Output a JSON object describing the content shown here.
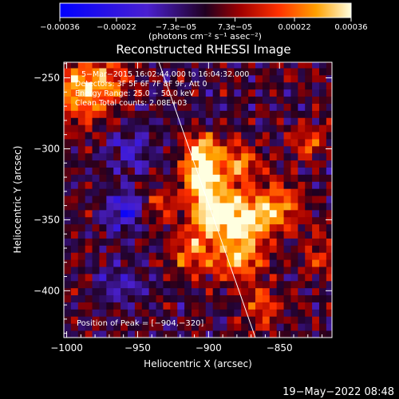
{
  "chart_data": {
    "type": "heatmap",
    "title": "Reconstructed RHESSI Image",
    "xlabel": "Heliocentric X (arcsec)",
    "ylabel": "Heliocentric Y (arcsec)",
    "xlim": [
      -1002,
      -813
    ],
    "ylim": [
      -433,
      -239
    ],
    "x_ticks": [
      -1000,
      -950,
      -900,
      -850
    ],
    "y_ticks": [
      -400,
      -350,
      -300,
      -250
    ],
    "x_tick_labels": [
      "−1000",
      "−950",
      "−900",
      "−850"
    ],
    "y_tick_labels": [
      "−400",
      "−350",
      "−300",
      "−250"
    ],
    "colorbar": {
      "range": [
        -0.00036,
        0.00036
      ],
      "ticks": [
        -0.00036,
        -0.00022,
        -7.3e-05,
        7.3e-05,
        0.00022,
        0.00036
      ],
      "tick_labels": [
        "−0.00036",
        "−0.00022",
        "−7.3e−05",
        "7.3e−05",
        "0.00022",
        "0.00036"
      ],
      "unit_label": "(photons cm⁻² s⁻¹ asec⁻²)"
    },
    "annotations": [
      "5−Mar−2015 16:02:44.000 to 16:04:32.000",
      "Detectors: 3F 5F 6F 7F 8F 9F, Att 0",
      "Energy Range: 25.0 − 50.0 keV",
      "Clean     Total counts: 2.08E+03"
    ],
    "peak_label": "Position of Peak = [−904,−320]",
    "peak": [
      -904,
      -320
    ],
    "limb_line": [
      [
        -935,
        -239
      ],
      [
        -867,
        -433
      ]
    ],
    "sources": [
      {
        "x": -993,
        "y": -262,
        "value": 0.00022,
        "width": 16
      },
      {
        "x": -975,
        "y": -252,
        "value": 0.00018,
        "width": 13
      },
      {
        "x": -905,
        "y": -319,
        "value": 0.00036,
        "width": 10
      },
      {
        "x": -898,
        "y": -344,
        "value": 0.00036,
        "width": 11
      },
      {
        "x": -876,
        "y": -350,
        "value": 0.00032,
        "width": 14
      },
      {
        "x": -905,
        "y": -300,
        "value": 0.00026,
        "width": 9
      },
      {
        "x": -880,
        "y": -310,
        "value": 0.00024,
        "width": 10
      },
      {
        "x": -912,
        "y": -373,
        "value": 0.00024,
        "width": 11
      },
      {
        "x": -878,
        "y": -378,
        "value": 0.00022,
        "width": 12
      },
      {
        "x": -850,
        "y": -340,
        "value": 0.00022,
        "width": 12
      },
      {
        "x": -830,
        "y": -295,
        "value": 0.00018,
        "width": 9
      },
      {
        "x": -935,
        "y": -340,
        "value": 0.00016,
        "width": 9
      },
      {
        "x": -862,
        "y": -410,
        "value": 0.00016,
        "width": 10
      },
      {
        "x": -822,
        "y": -375,
        "value": 0.00014,
        "width": 9
      },
      {
        "x": -958,
        "y": -344,
        "value": -0.00024,
        "width": 9
      },
      {
        "x": -962,
        "y": -395,
        "value": -0.00014,
        "width": 9
      },
      {
        "x": -955,
        "y": -300,
        "value": -0.00012,
        "width": 12
      }
    ]
  },
  "footer": {
    "date": "19−May−2022 08:48"
  },
  "colors": {
    "background": "#000000",
    "neutral": "#5a18b0"
  }
}
